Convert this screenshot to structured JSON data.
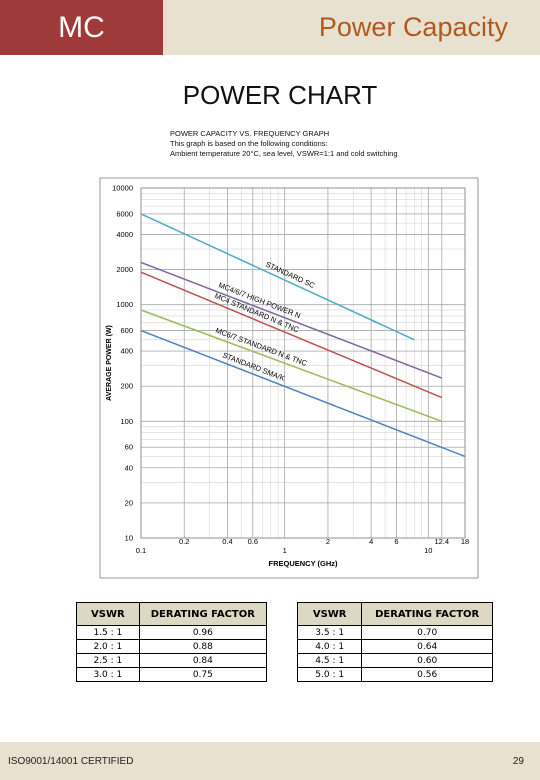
{
  "header": {
    "left": "MC",
    "right": "Power Capacity"
  },
  "title": "POWER CHART",
  "notes": [
    "POWER CAPACITY VS. FREQUENCY GRAPH",
    "This graph is based on the following conditions:",
    "Ambient temperature 20°C, sea level, VSWR=1:1 and cold switching"
  ],
  "chart_data": {
    "type": "line",
    "x_label": "FREQUENCY (GHz)",
    "y_label": "AVERAGE POWER (W)",
    "xlim": [
      0.1,
      18
    ],
    "ylim": [
      10,
      10000
    ],
    "log_x": true,
    "log_y": true,
    "grid": true,
    "xticks": [
      0.1,
      0.2,
      0.4,
      0.6,
      1,
      2,
      4,
      6,
      10,
      12.4,
      18
    ],
    "yticks": [
      10,
      20,
      40,
      60,
      100,
      200,
      400,
      600,
      1000,
      2000,
      4000,
      6000,
      10000
    ],
    "series": [
      {
        "name": "STANDARD SC",
        "color": "#4bacc6",
        "x": [
          0.1,
          8
        ],
        "values": [
          6000,
          500
        ]
      },
      {
        "name": "MC4/6/7 HIGH POWER N",
        "color": "#8064a2",
        "x": [
          0.1,
          12.4
        ],
        "values": [
          2300,
          235
        ]
      },
      {
        "name": "MC4 STANDARD N & TNC",
        "color": "#c0504d",
        "x": [
          0.1,
          12.4
        ],
        "values": [
          1900,
          160
        ]
      },
      {
        "name": "MC6/7 STANDARD N & TNC",
        "color": "#9bbb59",
        "x": [
          0.1,
          12.4
        ],
        "values": [
          900,
          100
        ]
      },
      {
        "name": "STANDARD SMA/K",
        "color": "#4f81bd",
        "x": [
          0.1,
          18
        ],
        "values": [
          600,
          50
        ]
      }
    ]
  },
  "tables": [
    {
      "columns": [
        "VSWR",
        "DERATING FACTOR"
      ],
      "rows": [
        [
          "1.5 : 1",
          "0.96"
        ],
        [
          "2.0 : 1",
          "0.88"
        ],
        [
          "2.5 : 1",
          "0.84"
        ],
        [
          "3.0 : 1",
          "0.75"
        ]
      ]
    },
    {
      "columns": [
        "VSWR",
        "DERATING FACTOR"
      ],
      "rows": [
        [
          "3.5 : 1",
          "0.70"
        ],
        [
          "4.0 : 1",
          "0.64"
        ],
        [
          "4.5 : 1",
          "0.60"
        ],
        [
          "5.0 : 1",
          "0.56"
        ]
      ]
    }
  ],
  "footer": {
    "left": "ISO9001/14001 CERTIFIED",
    "page": "29"
  }
}
